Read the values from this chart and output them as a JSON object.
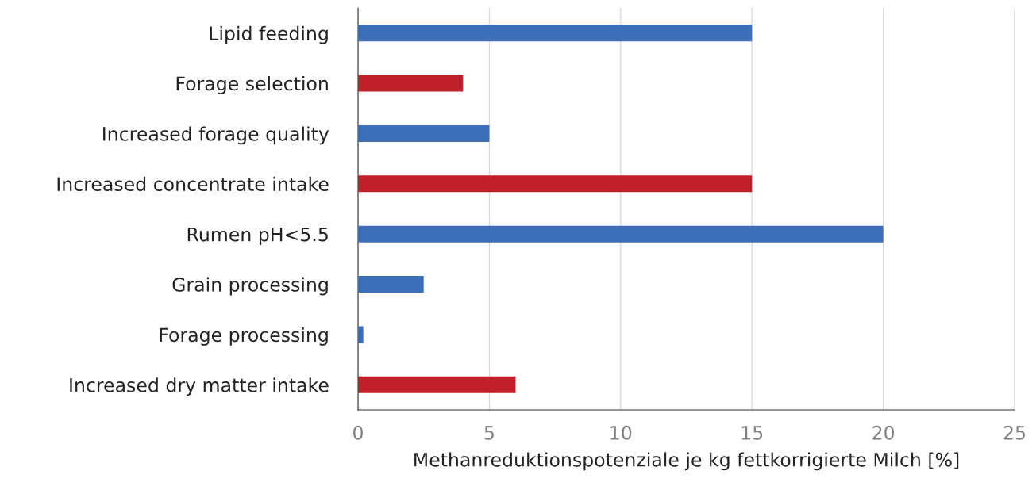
{
  "chart_data": {
    "type": "bar",
    "orientation": "horizontal",
    "categories": [
      "Lipid feeding",
      "Forage selection",
      "Increased forage quality",
      "Increased concentrate intake",
      "Rumen pH<5.5",
      "Grain processing",
      "Forage processing",
      "Increased dry matter intake"
    ],
    "values": [
      15,
      4,
      5,
      15,
      20,
      2.5,
      0.2,
      6
    ],
    "colors": [
      "#3d6eb8",
      "#c0202a",
      "#3d6eb8",
      "#c0202a",
      "#3d6eb8",
      "#3d6eb8",
      "#3d6eb8",
      "#c0202a"
    ],
    "xlabel": "Methanreduktionspotenziale je kg fettkorrigierte Milch [%]",
    "xlim": [
      0,
      25
    ],
    "xticks": [
      0,
      5,
      10,
      15,
      20,
      25
    ],
    "grid": "x",
    "legend": false
  }
}
